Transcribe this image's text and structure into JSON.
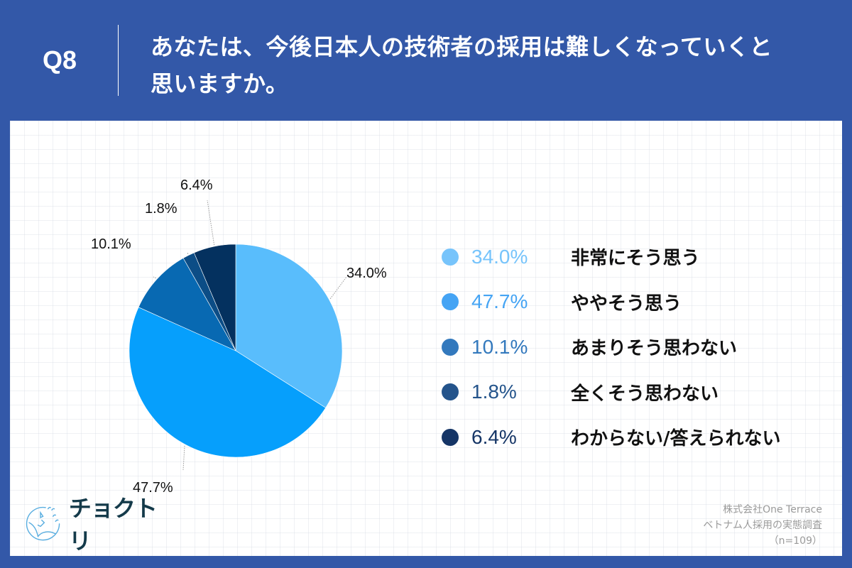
{
  "header": {
    "question_number": "Q8",
    "question_line1": "あなたは、今後日本人の技術者の採用は難しくなっていくと",
    "question_line2": "思いますか。"
  },
  "colors": {
    "background": "#3358a8",
    "card": "#ffffff",
    "slice_1": "#59bdfc",
    "slice_2": "#069ffc",
    "slice_3": "#0869b2",
    "slice_4": "#0c4d86",
    "slice_5": "#04315f"
  },
  "chart_data": {
    "type": "pie",
    "title": "あなたは、今後日本人の技術者の採用は難しくなっていくと思いますか。",
    "categories": [
      "非常にそう思う",
      "ややそう思う",
      "あまりそう思わない",
      "全くそう思わない",
      "わからない/答えられない"
    ],
    "values": [
      34.0,
      47.7,
      10.1,
      1.8,
      6.4
    ],
    "unit": "%",
    "start_angle": "12 o'clock",
    "direction": "clockwise",
    "legend_position": "right",
    "n": 109
  },
  "pie_labels": [
    "34.0%",
    "47.7%",
    "10.1%",
    "1.8%",
    "6.4%"
  ],
  "legend": [
    {
      "pct": "34.0%",
      "label": "非常にそう思う",
      "color": "#77c4fb"
    },
    {
      "pct": "47.7%",
      "label": "ややそう思う",
      "color": "#45a4f4"
    },
    {
      "pct": "10.1%",
      "label": "あまりそう思わない",
      "color": "#3379bd"
    },
    {
      "pct": "1.8%",
      "label": "全くそう思わない",
      "color": "#24548b"
    },
    {
      "pct": "6.4%",
      "label": "わからない/答えられない",
      "color": "#153566"
    }
  ],
  "logo": {
    "name": "チョクトリ"
  },
  "source": {
    "line1": "株式会社One Terrace",
    "line2": "ベトナム人採用の実態調査",
    "line3": "（n=109）"
  }
}
